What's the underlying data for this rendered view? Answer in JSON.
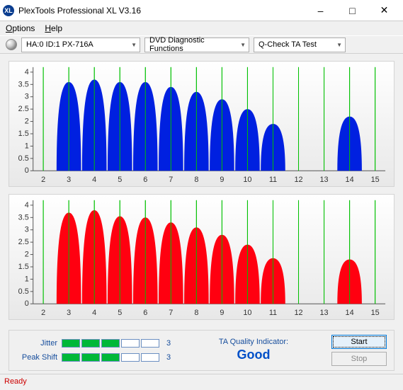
{
  "window": {
    "title": "PlexTools Professional XL V3.16"
  },
  "menu": {
    "options": "Options",
    "help": "Help"
  },
  "toolbar": {
    "drive": "HA:0 ID:1   PX-716A",
    "funcs": "DVD Diagnostic Functions",
    "test": "Q-Check TA Test"
  },
  "chart": {
    "yticks": [
      0,
      0.5,
      1,
      1.5,
      2,
      2.5,
      3,
      3.5,
      4
    ],
    "ylim": [
      0,
      4.2
    ],
    "xticks": [
      2,
      3,
      4,
      5,
      6,
      7,
      8,
      9,
      10,
      11,
      12,
      13,
      14,
      15
    ],
    "xlim": [
      1.6,
      15.4
    ],
    "grid_color": "#00c000",
    "axis_color": "#555555",
    "bg_top": "#ffffff",
    "bg_bottom": "#e8e8e8",
    "top": {
      "fill": "#0020e0",
      "peaks": [
        {
          "x": 3,
          "h": 3.6
        },
        {
          "x": 4,
          "h": 3.7
        },
        {
          "x": 5,
          "h": 3.6
        },
        {
          "x": 6,
          "h": 3.6
        },
        {
          "x": 7,
          "h": 3.4
        },
        {
          "x": 8,
          "h": 3.2
        },
        {
          "x": 9,
          "h": 2.9
        },
        {
          "x": 10,
          "h": 2.5
        },
        {
          "x": 11,
          "h": 1.9
        },
        {
          "x": 14,
          "h": 2.2
        }
      ],
      "half_width": 0.48
    },
    "bottom": {
      "fill": "#ff0010",
      "peaks": [
        {
          "x": 3,
          "h": 3.7
        },
        {
          "x": 4,
          "h": 3.8
        },
        {
          "x": 5,
          "h": 3.55
        },
        {
          "x": 6,
          "h": 3.5
        },
        {
          "x": 7,
          "h": 3.3
        },
        {
          "x": 8,
          "h": 3.1
        },
        {
          "x": 9,
          "h": 2.8
        },
        {
          "x": 10,
          "h": 2.4
        },
        {
          "x": 11,
          "h": 1.85
        },
        {
          "x": 14,
          "h": 1.8
        }
      ],
      "half_width": 0.48
    }
  },
  "meters": {
    "jitter": {
      "label": "Jitter",
      "filled": 3,
      "total": 5,
      "value": "3",
      "fill_color": "#00b838"
    },
    "peakshift": {
      "label": "Peak Shift",
      "filled": 3,
      "total": 5,
      "value": "3",
      "fill_color": "#00b838"
    }
  },
  "quality": {
    "label": "TA Quality Indicator:",
    "value": "Good"
  },
  "buttons": {
    "start": "Start",
    "stop": "Stop"
  },
  "status": {
    "text": "Ready"
  }
}
